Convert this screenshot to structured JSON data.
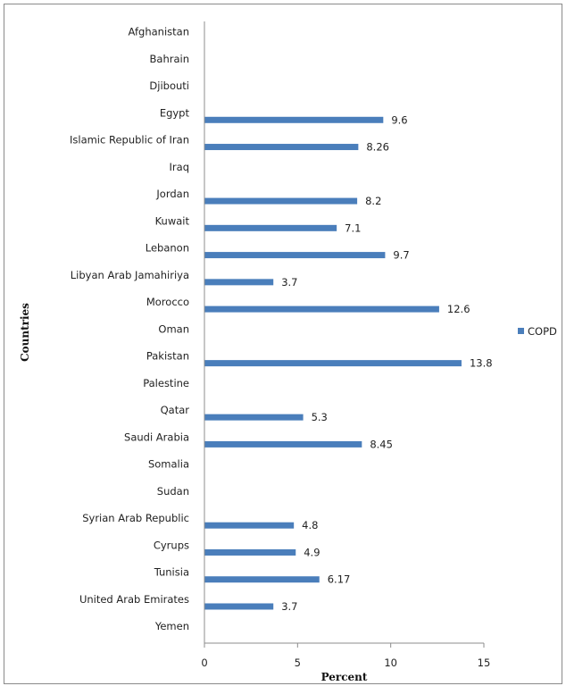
{
  "chart_data": {
    "type": "bar",
    "orientation": "horizontal",
    "categories": [
      "Afghanistan",
      "Bahrain",
      "Djibouti",
      "Egypt",
      "Islamic Republic of Iran",
      "Iraq",
      "Jordan",
      "Kuwait",
      "Lebanon",
      "Libyan Arab Jamahiriya",
      "Morocco",
      "Oman",
      "Pakistan",
      "Palestine",
      "Qatar",
      "Saudi Arabia",
      "Somalia",
      "Sudan",
      "Syrian Arab Republic",
      "Cyrups",
      "Tunisia",
      "United Arab Emirates",
      "Yemen"
    ],
    "series": [
      {
        "name": "COPD",
        "color": "#4a7ebb",
        "values": [
          null,
          null,
          null,
          9.6,
          8.26,
          null,
          8.2,
          7.1,
          9.7,
          3.7,
          12.6,
          null,
          13.8,
          null,
          5.3,
          8.45,
          null,
          null,
          4.8,
          4.9,
          6.17,
          3.7,
          null
        ],
        "labels": [
          "",
          "",
          "",
          "9.6",
          "8.26",
          "",
          "8.2",
          "7.1",
          "9.7",
          "3.7",
          "12.6",
          "",
          "13.8",
          "",
          "5.3",
          "8.45",
          "",
          "",
          "4.8",
          "4.9",
          "6.17",
          "3.7",
          ""
        ]
      }
    ],
    "xlabel": "Percent",
    "ylabel": "Countries",
    "xlim": [
      0,
      15
    ],
    "xticks": [
      0,
      5,
      10,
      15
    ],
    "xtick_labels": [
      "0",
      "5",
      "10",
      "15"
    ],
    "legend_position": "right",
    "grid": false
  }
}
